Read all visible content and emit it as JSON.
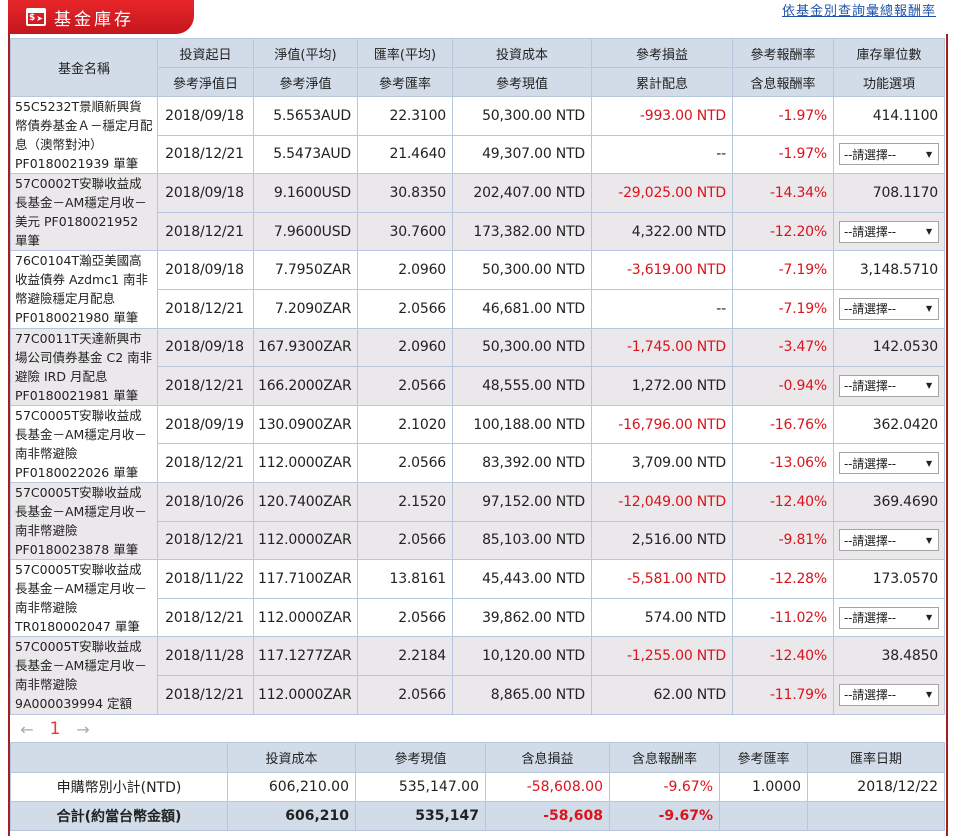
{
  "header": {
    "icon": "dollar-cursor-icon",
    "title": "基金庫存",
    "link": "依基金別查詢彙總報酬率"
  },
  "colors": {
    "brand_red": "#c4161c",
    "header_bg": "#d1dce8",
    "alt_row_bg": "#ebe8eb",
    "negative": "#d9141c"
  },
  "table": {
    "headers": {
      "fund_name": "基金名稱",
      "row1": [
        "投資起日",
        "淨值(平均)",
        "匯率(平均)",
        "投資成本",
        "參考損益",
        "參考報酬率",
        "庫存單位數"
      ],
      "row2": [
        "參考淨值日",
        "參考淨值",
        "參考匯率",
        "參考現值",
        "累計配息",
        "含息報酬率",
        "功能選項"
      ]
    },
    "select_placeholder": "--請選擇--",
    "funds": [
      {
        "name": "55C5232T景順新興貨幣債券基金Ａ－穩定月配息（澳幣對沖）PF0180021939 單筆",
        "r1": {
          "date": "2018/09/18",
          "nav": "5.5653AUD",
          "fx": "22.3100",
          "cost": "50,300.00 NTD",
          "pl": "-993.00 NTD",
          "ret": "-1.97%",
          "units": "414.1100"
        },
        "r2": {
          "date": "2018/12/21",
          "nav": "5.5473AUD",
          "fx": "21.4640",
          "value": "49,307.00 NTD",
          "div": "--",
          "ret": "-1.97%"
        }
      },
      {
        "name": "57C0002T安聯收益成長基金－AM穩定月收－美元 PF0180021952 單筆",
        "r1": {
          "date": "2018/09/18",
          "nav": "9.1600USD",
          "fx": "30.8350",
          "cost": "202,407.00 NTD",
          "pl": "-29,025.00 NTD",
          "ret": "-14.34%",
          "units": "708.1170"
        },
        "r2": {
          "date": "2018/12/21",
          "nav": "7.9600USD",
          "fx": "30.7600",
          "value": "173,382.00 NTD",
          "div": "4,322.00 NTD",
          "ret": "-12.20%"
        }
      },
      {
        "name": "76C0104T瀚亞美國高收益債券 Azdmc1 南非幣避險穩定月配息 PF0180021980 單筆",
        "r1": {
          "date": "2018/09/18",
          "nav": "7.7950ZAR",
          "fx": "2.0960",
          "cost": "50,300.00 NTD",
          "pl": "-3,619.00 NTD",
          "ret": "-7.19%",
          "units": "3,148.5710"
        },
        "r2": {
          "date": "2018/12/21",
          "nav": "7.2090ZAR",
          "fx": "2.0566",
          "value": "46,681.00 NTD",
          "div": "--",
          "ret": "-7.19%"
        }
      },
      {
        "name": "77C0011T天達新興市場公司債券基金 C2 南非避險 IRD 月配息 PF0180021981 單筆",
        "r1": {
          "date": "2018/09/18",
          "nav": "167.9300ZAR",
          "fx": "2.0960",
          "cost": "50,300.00 NTD",
          "pl": "-1,745.00 NTD",
          "ret": "-3.47%",
          "units": "142.0530"
        },
        "r2": {
          "date": "2018/12/21",
          "nav": "166.2000ZAR",
          "fx": "2.0566",
          "value": "48,555.00 NTD",
          "div": "1,272.00 NTD",
          "ret": "-0.94%"
        }
      },
      {
        "name": "57C0005T安聯收益成長基金－AM穩定月收－南非幣避險 PF0180022026 單筆",
        "r1": {
          "date": "2018/09/19",
          "nav": "130.0900ZAR",
          "fx": "2.1020",
          "cost": "100,188.00 NTD",
          "pl": "-16,796.00 NTD",
          "ret": "-16.76%",
          "units": "362.0420"
        },
        "r2": {
          "date": "2018/12/21",
          "nav": "112.0000ZAR",
          "fx": "2.0566",
          "value": "83,392.00 NTD",
          "div": "3,709.00 NTD",
          "ret": "-13.06%"
        }
      },
      {
        "name": "57C0005T安聯收益成長基金－AM穩定月收－南非幣避險 PF0180023878 單筆",
        "r1": {
          "date": "2018/10/26",
          "nav": "120.7400ZAR",
          "fx": "2.1520",
          "cost": "97,152.00 NTD",
          "pl": "-12,049.00 NTD",
          "ret": "-12.40%",
          "units": "369.4690"
        },
        "r2": {
          "date": "2018/12/21",
          "nav": "112.0000ZAR",
          "fx": "2.0566",
          "value": "85,103.00 NTD",
          "div": "2,516.00 NTD",
          "ret": "-9.81%"
        }
      },
      {
        "name": "57C0005T安聯收益成長基金－AM穩定月收－南非幣避險 TR0180002047 單筆",
        "r1": {
          "date": "2018/11/22",
          "nav": "117.7100ZAR",
          "fx": "13.8161",
          "cost": "45,443.00 NTD",
          "pl": "-5,581.00 NTD",
          "ret": "-12.28%",
          "units": "173.0570"
        },
        "r2": {
          "date": "2018/12/21",
          "nav": "112.0000ZAR",
          "fx": "2.0566",
          "value": "39,862.00 NTD",
          "div": "574.00 NTD",
          "ret": "-11.02%"
        }
      },
      {
        "name": "57C0005T安聯收益成長基金－AM穩定月收－南非幣避險 9A000039994 定額",
        "r1": {
          "date": "2018/11/28",
          "nav": "117.1277ZAR",
          "fx": "2.2184",
          "cost": "10,120.00 NTD",
          "pl": "-1,255.00 NTD",
          "ret": "-12.40%",
          "units": "38.4850"
        },
        "r2": {
          "date": "2018/12/21",
          "nav": "112.0000ZAR",
          "fx": "2.0566",
          "value": "8,865.00 NTD",
          "div": "62.00 NTD",
          "ret": "-11.79%"
        }
      }
    ]
  },
  "pagination": {
    "prev": "←",
    "current": "1",
    "next": "→"
  },
  "summary": {
    "headers": [
      "",
      "投資成本",
      "參考現值",
      "含息損益",
      "含息報酬率",
      "參考匯率",
      "匯率日期"
    ],
    "subtotal": {
      "label": "申購幣別小計(NTD)",
      "cost": "606,210.00",
      "value": "535,147.00",
      "pl": "-58,608.00",
      "ret": "-9.67%",
      "fx": "1.0000",
      "fx_date": "2018/12/22"
    },
    "total": {
      "label": "合計(約當台幣金額)",
      "cost": "606,210",
      "value": "535,147",
      "pl": "-58,608",
      "ret": "-9.67%",
      "fx": "",
      "fx_date": ""
    }
  }
}
